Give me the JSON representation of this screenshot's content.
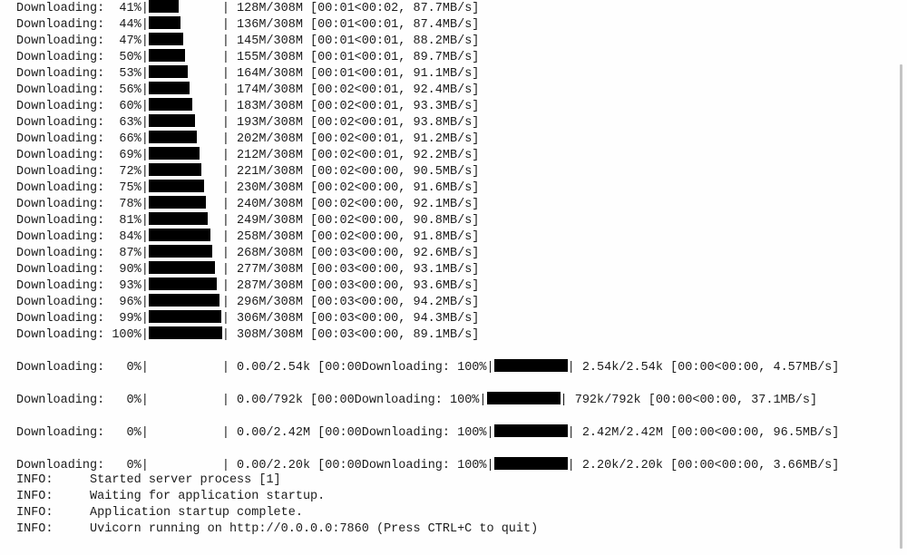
{
  "terminal": {
    "main_download": [
      {
        "label": "Downloading:",
        "pct": "41%",
        "fill": 41,
        "stats": "128M/308M [00:01<00:02, 87.7MB/s]"
      },
      {
        "label": "Downloading:",
        "pct": "44%",
        "fill": 44,
        "stats": "136M/308M [00:01<00:01, 87.4MB/s]"
      },
      {
        "label": "Downloading:",
        "pct": "47%",
        "fill": 47,
        "stats": "145M/308M [00:01<00:01, 88.2MB/s]"
      },
      {
        "label": "Downloading:",
        "pct": "50%",
        "fill": 50,
        "stats": "155M/308M [00:01<00:01, 89.7MB/s]"
      },
      {
        "label": "Downloading:",
        "pct": "53%",
        "fill": 53,
        "stats": "164M/308M [00:01<00:01, 91.1MB/s]"
      },
      {
        "label": "Downloading:",
        "pct": "56%",
        "fill": 56,
        "stats": "174M/308M [00:02<00:01, 92.4MB/s]"
      },
      {
        "label": "Downloading:",
        "pct": "60%",
        "fill": 60,
        "stats": "183M/308M [00:02<00:01, 93.3MB/s]"
      },
      {
        "label": "Downloading:",
        "pct": "63%",
        "fill": 63,
        "stats": "193M/308M [00:02<00:01, 93.8MB/s]"
      },
      {
        "label": "Downloading:",
        "pct": "66%",
        "fill": 66,
        "stats": "202M/308M [00:02<00:01, 91.2MB/s]"
      },
      {
        "label": "Downloading:",
        "pct": "69%",
        "fill": 69,
        "stats": "212M/308M [00:02<00:01, 92.2MB/s]"
      },
      {
        "label": "Downloading:",
        "pct": "72%",
        "fill": 72,
        "stats": "221M/308M [00:02<00:00, 90.5MB/s]"
      },
      {
        "label": "Downloading:",
        "pct": "75%",
        "fill": 75,
        "stats": "230M/308M [00:02<00:00, 91.6MB/s]"
      },
      {
        "label": "Downloading:",
        "pct": "78%",
        "fill": 78,
        "stats": "240M/308M [00:02<00:00, 92.1MB/s]"
      },
      {
        "label": "Downloading:",
        "pct": "81%",
        "fill": 81,
        "stats": "249M/308M [00:02<00:00, 90.8MB/s]"
      },
      {
        "label": "Downloading:",
        "pct": "84%",
        "fill": 84,
        "stats": "258M/308M [00:02<00:00, 91.8MB/s]"
      },
      {
        "label": "Downloading:",
        "pct": "87%",
        "fill": 87,
        "stats": "268M/308M [00:03<00:00, 92.6MB/s]"
      },
      {
        "label": "Downloading:",
        "pct": "90%",
        "fill": 90,
        "stats": "277M/308M [00:03<00:00, 93.1MB/s]"
      },
      {
        "label": "Downloading:",
        "pct": "93%",
        "fill": 93,
        "stats": "287M/308M [00:03<00:00, 93.6MB/s]"
      },
      {
        "label": "Downloading:",
        "pct": "96%",
        "fill": 96,
        "stats": "296M/308M [00:03<00:00, 94.2MB/s]"
      },
      {
        "label": "Downloading:",
        "pct": "99%",
        "fill": 99,
        "stats": "306M/308M [00:03<00:00, 94.3MB/s]"
      },
      {
        "label": "Downloading:",
        "pct": "100%",
        "fill": 100,
        "stats": "308M/308M [00:03<00:00, 89.1MB/s]"
      }
    ],
    "small_downloads": [
      {
        "label": "Downloading:",
        "pct": "0%",
        "stats": "0.00/2.54k [00:00",
        "label2": "Downloading:",
        "pct2": "100%",
        "stats2": "2.54k/2.54k [00:00<00:00, 4.57MB/s]"
      },
      {
        "label": "Downloading:",
        "pct": "0%",
        "stats": "0.00/792k [00:00",
        "label2": "Downloading:",
        "pct2": "100%",
        "stats2": "792k/792k [00:00<00:00, 37.1MB/s]"
      },
      {
        "label": "Downloading:",
        "pct": "0%",
        "stats": "0.00/2.42M [00:00",
        "label2": "Downloading:",
        "pct2": "100%",
        "stats2": "2.42M/2.42M [00:00<00:00, 96.5MB/s]"
      },
      {
        "label": "Downloading:",
        "pct": "0%",
        "stats": "0.00/2.20k [00:00",
        "label2": "Downloading:",
        "pct2": "100%",
        "stats2": "2.20k/2.20k [00:00<00:00, 3.66MB/s]"
      }
    ],
    "log": [
      {
        "level": "INFO:",
        "message": "Started server process [1]"
      },
      {
        "level": "INFO:",
        "message": "Waiting for application startup."
      },
      {
        "level": "INFO:",
        "message": "Application startup complete."
      },
      {
        "level": "INFO:",
        "message": "Uvicorn running on http://0.0.0.0:7860 (Press CTRL+C to quit)"
      }
    ]
  }
}
